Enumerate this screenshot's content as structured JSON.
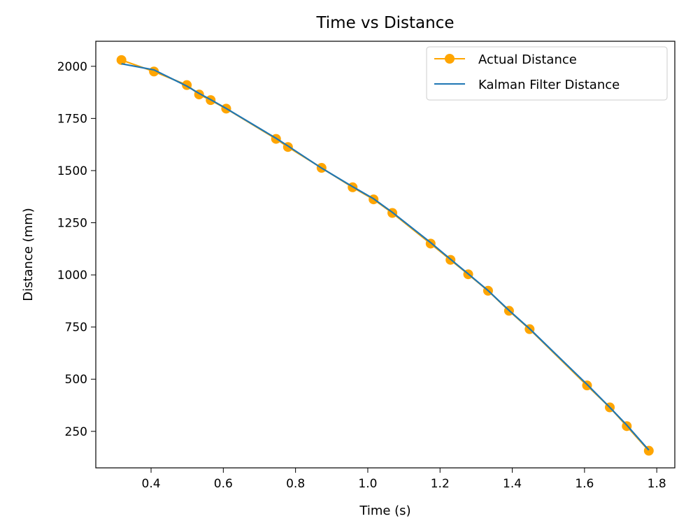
{
  "chart_data": {
    "type": "line",
    "title": "Time vs Distance",
    "xlabel": "Time (s)",
    "ylabel": "Distance (mm)",
    "xlim": [
      0.247,
      1.85
    ],
    "ylim": [
      75,
      2120
    ],
    "xticks": [
      0.4,
      0.6,
      0.8,
      1.0,
      1.2,
      1.4,
      1.6,
      1.8
    ],
    "xtick_labels": [
      "0.4",
      "0.6",
      "0.8",
      "1.0",
      "1.2",
      "1.4",
      "1.6",
      "1.8"
    ],
    "yticks": [
      250,
      500,
      750,
      1000,
      1250,
      1500,
      1750,
      2000
    ],
    "ytick_labels": [
      "250",
      "500",
      "750",
      "1000",
      "1250",
      "1500",
      "1750",
      "2000"
    ],
    "grid": false,
    "legend_position": "top-right",
    "series": [
      {
        "name": "Actual Distance",
        "color": "#ffa500",
        "style": "line-with-markers",
        "x": [
          0.318,
          0.408,
          0.499,
          0.533,
          0.565,
          0.608,
          0.746,
          0.779,
          0.872,
          0.958,
          1.016,
          1.068,
          1.174,
          1.229,
          1.278,
          1.333,
          1.391,
          1.448,
          1.607,
          1.67,
          1.717,
          1.778
        ],
        "y": [
          2030,
          1975,
          1910,
          1865,
          1838,
          1797,
          1652,
          1613,
          1513,
          1420,
          1362,
          1297,
          1150,
          1072,
          1003,
          924,
          828,
          740,
          470,
          365,
          275,
          157
        ]
      },
      {
        "name": "Kalman Filter Distance",
        "color": "#1f77b4",
        "style": "line",
        "x": [
          0.318,
          0.408,
          0.499,
          0.533,
          0.565,
          0.608,
          0.746,
          0.779,
          0.872,
          0.958,
          1.016,
          1.068,
          1.174,
          1.229,
          1.278,
          1.333,
          1.391,
          1.448,
          1.607,
          1.67,
          1.717,
          1.778
        ],
        "y": [
          2012,
          1983,
          1905,
          1870,
          1840,
          1798,
          1655,
          1618,
          1512,
          1423,
          1365,
          1300,
          1155,
          1075,
          1005,
          925,
          830,
          742,
          475,
          365,
          280,
          160
        ]
      }
    ]
  }
}
